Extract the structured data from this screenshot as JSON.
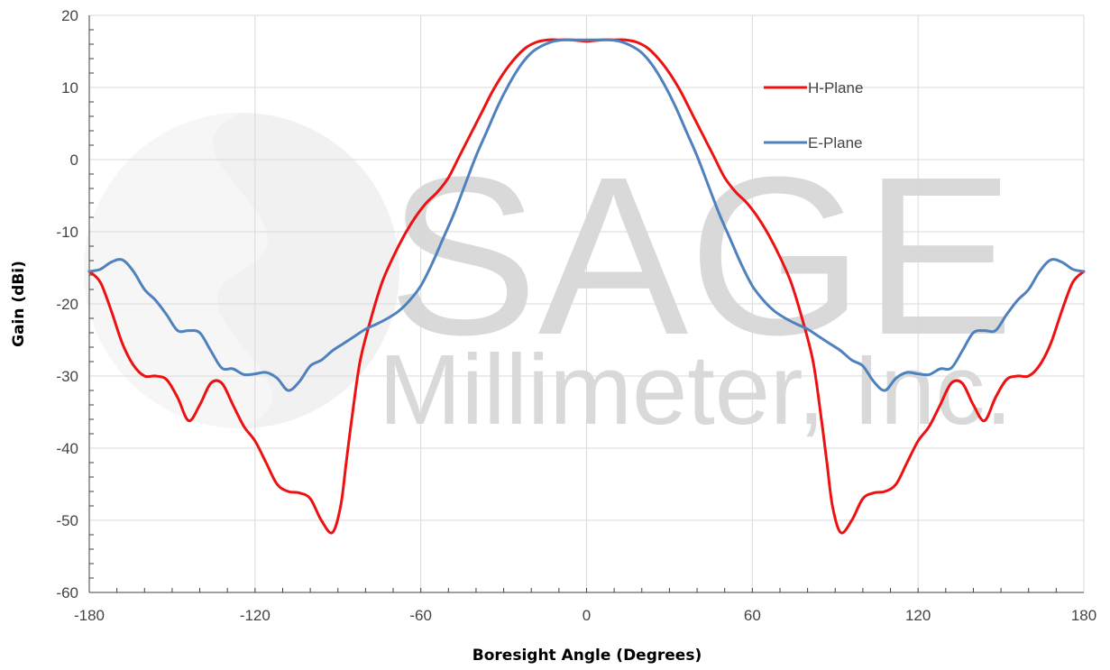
{
  "watermark": {
    "line1": "SAGE",
    "line2": "Millimeter, Inc."
  },
  "chart_data": {
    "type": "line",
    "title": "",
    "xlabel": "Boresight Angle (Degrees)",
    "ylabel": "Gain (dBi)",
    "xlim": [
      -180,
      180
    ],
    "ylim": [
      -60,
      20
    ],
    "xticks": [
      -180,
      -120,
      -60,
      0,
      60,
      120,
      180
    ],
    "yticks": [
      -60,
      -50,
      -40,
      -30,
      -20,
      -10,
      0,
      10,
      20
    ],
    "grid": true,
    "legend_position": "top-right",
    "series": [
      {
        "name": "H-Plane",
        "color": "#ee1111",
        "x": [
          -180,
          -176,
          -172,
          -168,
          -164,
          -160,
          -156,
          -152,
          -148,
          -144,
          -140,
          -136,
          -132,
          -128,
          -124,
          -120,
          -116,
          -112,
          -108,
          -104,
          -100,
          -96,
          -92,
          -89,
          -87,
          -85,
          -82,
          -78,
          -74,
          -70,
          -66,
          -62,
          -58,
          -54,
          -50,
          -46,
          -42,
          -38,
          -34,
          -30,
          -26,
          -22,
          -18,
          -14,
          -10,
          -6,
          -3,
          0,
          3,
          6,
          10,
          14,
          18,
          22,
          26,
          30,
          34,
          38,
          42,
          46,
          50,
          54,
          58,
          62,
          66,
          70,
          74,
          78,
          82,
          85,
          87,
          89,
          92,
          96,
          100,
          104,
          108,
          112,
          116,
          120,
          124,
          128,
          132,
          136,
          140,
          144,
          148,
          152,
          156,
          160,
          164,
          168,
          172,
          176,
          180
        ],
        "y": [
          -15.5,
          -17,
          -21,
          -25.5,
          -28.5,
          -30,
          -30,
          -30.5,
          -33,
          -36.2,
          -34,
          -31,
          -31,
          -34,
          -37,
          -39,
          -42,
          -45,
          -46,
          -46.2,
          -47,
          -50,
          -51.7,
          -48,
          -42,
          -36,
          -28,
          -22,
          -17,
          -13.5,
          -10.5,
          -8,
          -6,
          -4.5,
          -2.5,
          0.5,
          3.5,
          6.5,
          9.5,
          12,
          14,
          15.5,
          16.3,
          16.6,
          16.6,
          16.6,
          16.5,
          16.4,
          16.5,
          16.6,
          16.6,
          16.6,
          16.3,
          15.5,
          14,
          12,
          9.5,
          6.5,
          3.5,
          0.5,
          -2.5,
          -4.5,
          -6,
          -8,
          -10.5,
          -13.5,
          -17,
          -22,
          -28,
          -36,
          -42,
          -48,
          -51.7,
          -50,
          -47,
          -46.2,
          -46,
          -45,
          -42,
          -39,
          -37,
          -34,
          -31,
          -31,
          -34,
          -36.2,
          -33,
          -30.5,
          -30,
          -30,
          -28.5,
          -25.5,
          -21,
          -17,
          -15.5
        ]
      },
      {
        "name": "E-Plane",
        "color": "#4f81bd",
        "x": [
          -180,
          -176,
          -172,
          -168,
          -164,
          -160,
          -156,
          -152,
          -148,
          -144,
          -140,
          -136,
          -132,
          -128,
          -124,
          -120,
          -116,
          -112,
          -108,
          -104,
          -100,
          -96,
          -92,
          -88,
          -84,
          -80,
          -76,
          -72,
          -68,
          -64,
          -60,
          -56,
          -52,
          -48,
          -44,
          -40,
          -36,
          -32,
          -28,
          -24,
          -20,
          -16,
          -12,
          -8,
          -4,
          0,
          4,
          8,
          12,
          16,
          20,
          24,
          28,
          32,
          36,
          40,
          44,
          48,
          52,
          56,
          60,
          64,
          68,
          72,
          76,
          80,
          84,
          88,
          92,
          96,
          100,
          104,
          108,
          112,
          116,
          120,
          124,
          128,
          132,
          136,
          140,
          144,
          148,
          152,
          156,
          160,
          164,
          168,
          172,
          176,
          180
        ],
        "y": [
          -15.5,
          -15.2,
          -14.2,
          -13.9,
          -15.5,
          -18,
          -19.5,
          -21.5,
          -23.7,
          -23.7,
          -24,
          -26.5,
          -28.9,
          -29,
          -29.8,
          -29.7,
          -29.5,
          -30.3,
          -32,
          -30.8,
          -28.6,
          -27.8,
          -26.5,
          -25.5,
          -24.5,
          -23.5,
          -22.8,
          -22,
          -21,
          -19.5,
          -17.5,
          -14.5,
          -11,
          -7.5,
          -3.5,
          0.5,
          4,
          7.5,
          10.5,
          13,
          14.8,
          15.8,
          16.4,
          16.6,
          16.6,
          16.6,
          16.6,
          16.6,
          16.4,
          15.8,
          14.8,
          13,
          10.5,
          7.5,
          4,
          0.5,
          -3.5,
          -7.5,
          -11,
          -14.5,
          -17.5,
          -19.5,
          -21,
          -22,
          -22.8,
          -23.5,
          -24.5,
          -25.5,
          -26.5,
          -27.8,
          -28.6,
          -30.8,
          -32,
          -30.3,
          -29.5,
          -29.7,
          -29.8,
          -29,
          -28.9,
          -26.5,
          -24,
          -23.7,
          -23.7,
          -21.5,
          -19.5,
          -18,
          -15.5,
          -13.9,
          -14.2,
          -15.2,
          -15.5
        ]
      }
    ]
  }
}
